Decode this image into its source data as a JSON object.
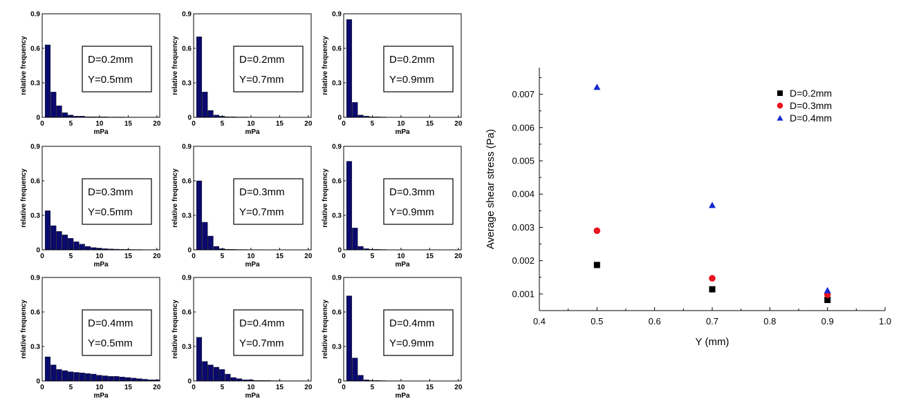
{
  "histograms": {
    "x_label": "mPa",
    "y_label": "relative frequency",
    "x_ticks": [
      0,
      5,
      10,
      15,
      20
    ],
    "y_ticks": [
      0,
      0.3,
      0.6,
      0.9
    ],
    "y_tick_labels": [
      "0",
      "0.3",
      "0.6",
      "0.9"
    ],
    "xlim": [
      0,
      20.5
    ],
    "ylim": [
      0,
      0.9
    ],
    "bar_color": "#0a0a6e",
    "panels": [
      {
        "d_label": "D=0.2mm",
        "y_label": "Y=0.5mm",
        "values": [
          0.63,
          0.22,
          0.1,
          0.04,
          0.02,
          0.01,
          0.01,
          0.005,
          0.005,
          0.004,
          0.004,
          0.003,
          0.003,
          0.003,
          0.002,
          0.002,
          0.002,
          0.002,
          0.002,
          0.002
        ]
      },
      {
        "d_label": "D=0.2mm",
        "y_label": "Y=0.7mm",
        "values": [
          0.7,
          0.22,
          0.06,
          0.02,
          0.01,
          0.005,
          0.004,
          0.003,
          0.003,
          0.002,
          0.002
        ]
      },
      {
        "d_label": "D=0.2mm",
        "y_label": "Y=0.9mm",
        "values": [
          0.85,
          0.13,
          0.02,
          0.01,
          0.005,
          0.004,
          0.003
        ]
      },
      {
        "d_label": "D=0.3mm",
        "y_label": "Y=0.5mm",
        "values": [
          0.34,
          0.21,
          0.16,
          0.13,
          0.1,
          0.07,
          0.05,
          0.03,
          0.02,
          0.015,
          0.01,
          0.008,
          0.006,
          0.005,
          0.004,
          0.003,
          0.003,
          0.002,
          0.002,
          0.002
        ]
      },
      {
        "d_label": "D=0.3mm",
        "y_label": "Y=0.7mm",
        "values": [
          0.6,
          0.24,
          0.12,
          0.03,
          0.01,
          0.005,
          0.004,
          0.003,
          0.003,
          0.002,
          0.002,
          0.002
        ]
      },
      {
        "d_label": "D=0.3mm",
        "y_label": "Y=0.9mm",
        "values": [
          0.77,
          0.19,
          0.03,
          0.01,
          0.005,
          0.004,
          0.003
        ]
      },
      {
        "d_label": "D=0.4mm",
        "y_label": "Y=0.5mm",
        "values": [
          0.21,
          0.14,
          0.1,
          0.09,
          0.08,
          0.075,
          0.07,
          0.065,
          0.06,
          0.05,
          0.045,
          0.04,
          0.04,
          0.035,
          0.03,
          0.025,
          0.02,
          0.015,
          0.01,
          0.01
        ]
      },
      {
        "d_label": "D=0.4mm",
        "y_label": "Y=0.7mm",
        "values": [
          0.38,
          0.17,
          0.14,
          0.12,
          0.1,
          0.06,
          0.03,
          0.02,
          0.01,
          0.01,
          0.005,
          0.005,
          0.004,
          0.003,
          0.003,
          0.002,
          0.002,
          0.002,
          0.002,
          0.002
        ]
      },
      {
        "d_label": "D=0.4mm",
        "y_label": "Y=0.9mm",
        "values": [
          0.74,
          0.2,
          0.05,
          0.01,
          0.005,
          0.004,
          0.003,
          0.002,
          0.002
        ]
      }
    ]
  },
  "chart_data": {
    "type": "scatter",
    "xlabel": "Y (mm)",
    "ylabel": "Average shear stress (Pa)",
    "xlim": [
      0.4,
      1.0
    ],
    "ylim": [
      0.0005,
      0.0078
    ],
    "x_ticks": [
      0.4,
      0.5,
      0.6,
      0.7,
      0.8,
      0.9,
      1.0
    ],
    "x_tick_labels": [
      "0.4",
      "0.5",
      "0.6",
      "0.7",
      "0.8",
      "0.9",
      "1.0"
    ],
    "y_ticks": [
      0.001,
      0.002,
      0.003,
      0.004,
      0.005,
      0.006,
      0.007
    ],
    "y_tick_labels": [
      "0.001",
      "0.002",
      "0.003",
      "0.004",
      "0.005",
      "0.006",
      "0.007"
    ],
    "legend_position": "top-right",
    "series": [
      {
        "name": "D=0.2mm",
        "marker": "square",
        "color": "#000000",
        "x": [
          0.5,
          0.7,
          0.9
        ],
        "y": [
          0.00187,
          0.00114,
          0.00082
        ]
      },
      {
        "name": "D=0.3mm",
        "marker": "circle",
        "color": "#e8141e",
        "x": [
          0.5,
          0.7,
          0.9
        ],
        "y": [
          0.0029,
          0.00147,
          0.00098
        ]
      },
      {
        "name": "D=0.4mm",
        "marker": "triangle",
        "color": "#1428d2",
        "x": [
          0.5,
          0.7,
          0.9
        ],
        "y": [
          0.00722,
          0.00367,
          0.00111
        ]
      }
    ]
  }
}
